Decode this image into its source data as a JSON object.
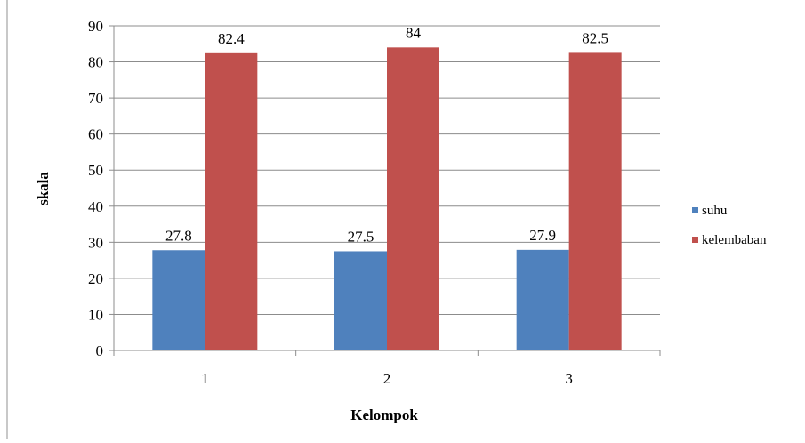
{
  "chart_data": {
    "type": "bar",
    "title": "",
    "xlabel": "Kelompok",
    "ylabel": "skala",
    "categories": [
      "1",
      "2",
      "3"
    ],
    "series": [
      {
        "name": "suhu",
        "color": "#4F81BD",
        "values": [
          27.8,
          27.5,
          27.9
        ],
        "labels": [
          "27.8",
          "27.5",
          "27.9"
        ]
      },
      {
        "name": "kelembaban",
        "color": "#C0504D",
        "values": [
          82.4,
          84,
          82.5
        ],
        "labels": [
          "82.4",
          "84",
          "82.5"
        ]
      }
    ],
    "ylim": [
      0,
      90
    ],
    "yticks": [
      0,
      10,
      20,
      30,
      40,
      50,
      60,
      70,
      80,
      90
    ],
    "grid": true,
    "legend_position": "right"
  }
}
